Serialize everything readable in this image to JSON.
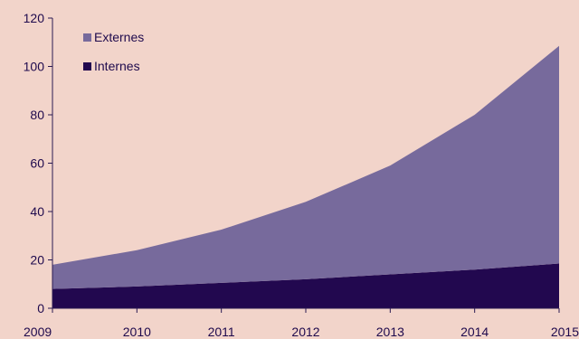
{
  "chart_data": {
    "type": "area",
    "stacked": true,
    "title": "",
    "xlabel": "",
    "ylabel": "",
    "x": [
      "2009",
      "2010",
      "2011",
      "2012",
      "2013",
      "2014",
      "2015"
    ],
    "ylim": [
      0,
      120
    ],
    "yticks": [
      "0",
      "20",
      "40",
      "60",
      "80",
      "100",
      "120"
    ],
    "grid": false,
    "legend_position": "top-left",
    "series": [
      {
        "name": "Internes",
        "color": "#22084f",
        "values": [
          8,
          9,
          10.5,
          12,
          14,
          16,
          18.5
        ]
      },
      {
        "name": "Externes",
        "color": "#776a9c",
        "values": [
          10,
          15,
          22,
          32,
          45,
          64,
          90
        ]
      }
    ],
    "legend": [
      {
        "name": "Externes",
        "color": "#776a9c"
      },
      {
        "name": "Internes",
        "color": "#22084f"
      }
    ]
  }
}
